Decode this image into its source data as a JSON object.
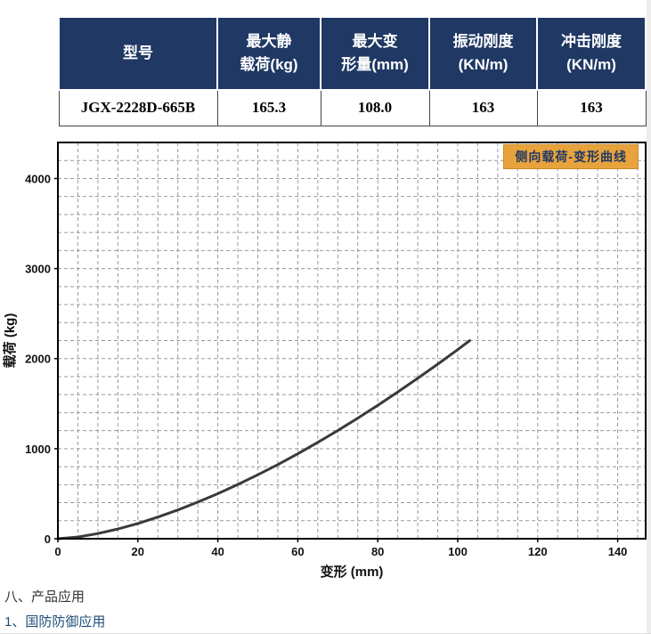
{
  "table": {
    "headers": [
      {
        "line1": "型号",
        "line2": ""
      },
      {
        "line1": "最大静",
        "line2": "载荷(kg)"
      },
      {
        "line1": "最大变",
        "line2": "形量(mm)"
      },
      {
        "line1": "振动刚度",
        "line2": "(KN/m)"
      },
      {
        "line1": "冲击刚度",
        "line2": "(KN/m)"
      }
    ],
    "row": [
      "JGX-2228D-665B",
      "165.3",
      "108.0",
      "163",
      "163"
    ]
  },
  "chart_data": {
    "type": "line",
    "title": "侧向载荷-变形曲线",
    "xlabel": "变形 (mm)",
    "ylabel": "载荷 (kg)",
    "xlim": [
      0,
      147
    ],
    "ylim": [
      0,
      4400
    ],
    "xticks": [
      0,
      20,
      40,
      60,
      80,
      100,
      120,
      140
    ],
    "yticks": [
      0,
      1000,
      2000,
      3000,
      4000
    ],
    "grid": {
      "x_step": 5,
      "y_step": 200,
      "style": "dashed"
    },
    "legend": "none",
    "series": [
      {
        "name": "侧向载荷-变形曲线",
        "x": [
          0,
          5,
          10,
          15,
          20,
          25,
          30,
          35,
          40,
          45,
          50,
          55,
          60,
          65,
          70,
          75,
          80,
          85,
          90,
          95,
          100,
          103
        ],
        "y": [
          0,
          19,
          57,
          108,
          169,
          240,
          319,
          406,
          500,
          602,
          710,
          823,
          943,
          1070,
          1201,
          1339,
          1481,
          1629,
          1782,
          1938,
          2100,
          2200
        ]
      }
    ]
  },
  "footer": {
    "line1": "八、产品应用",
    "line2": "1、国防防御应用"
  },
  "colors": {
    "header_bg": "#1F3864",
    "header_text": "#FFFFFF",
    "badge_bg": "#E8A33D",
    "badge_text": "#1F3864",
    "curve": "#3A3A3A",
    "grid": "#999999",
    "border": "#000000"
  }
}
